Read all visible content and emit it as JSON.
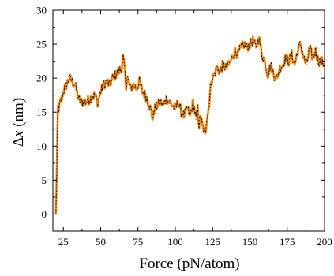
{
  "chart_data": {
    "type": "line",
    "title": "",
    "xlabel": "Force (pN/atom)",
    "ylabel_symbol": "Δ",
    "ylabel_var": "x",
    "ylabel_unit": " (nm)",
    "xlim": [
      18,
      200
    ],
    "ylim": [
      -2.5,
      30
    ],
    "xticks": [
      25,
      50,
      75,
      100,
      125,
      150,
      175,
      200
    ],
    "yticks": [
      0,
      5,
      10,
      15,
      20,
      25,
      30
    ],
    "grid": false,
    "legend": "none",
    "series": [
      {
        "line_color": "#000000",
        "marker_color": "#f28c1e",
        "x": [
          20,
          20.6,
          21,
          21.4,
          22,
          23,
          24,
          25,
          27,
          29,
          31,
          33,
          35,
          37,
          40,
          43,
          46,
          48,
          50,
          52,
          54,
          56,
          58,
          60,
          62,
          64,
          65,
          66,
          67,
          68,
          70,
          72,
          74,
          76,
          78,
          80,
          82,
          84,
          85,
          86,
          88,
          90,
          92,
          94,
          96,
          98,
          100,
          102,
          104,
          106,
          108,
          110,
          112,
          114,
          115,
          116,
          117,
          118,
          119,
          120,
          121,
          122,
          123,
          124,
          126,
          128,
          130,
          132,
          134,
          136,
          138,
          140,
          142,
          144,
          146,
          148,
          150,
          152,
          154,
          156,
          158,
          160,
          162,
          164,
          166,
          168,
          170,
          172,
          174,
          176,
          178,
          180,
          182,
          184,
          186,
          188,
          190,
          192,
          194,
          196,
          198,
          200
        ],
        "y": [
          0,
          6,
          12,
          16,
          15.5,
          16.5,
          17,
          18,
          19,
          20,
          19.5,
          19,
          17,
          16.5,
          16.5,
          17,
          17.5,
          16.5,
          18,
          19,
          19.5,
          19,
          20,
          20.5,
          21,
          21.5,
          23,
          21.5,
          19,
          20,
          18.5,
          19,
          18.5,
          19.5,
          18,
          17.5,
          16.5,
          15,
          14,
          15.5,
          16,
          16.5,
          16,
          17,
          16.5,
          16,
          15.5,
          16.5,
          15,
          14.5,
          15.5,
          14.5,
          16.5,
          14,
          15.5,
          13,
          14.5,
          13,
          12.5,
          11.5,
          14,
          15,
          17,
          19.5,
          20.5,
          21.5,
          21,
          22,
          21.5,
          22,
          23,
          24,
          23.5,
          24.5,
          25,
          24.5,
          25,
          25.5,
          24.5,
          26,
          23.5,
          22.5,
          20.5,
          22,
          20.5,
          20,
          21.5,
          22,
          23,
          22.5,
          23.5,
          22,
          24,
          25,
          23,
          22,
          24.5,
          23,
          24,
          22.5,
          22.5,
          22
        ]
      }
    ]
  }
}
